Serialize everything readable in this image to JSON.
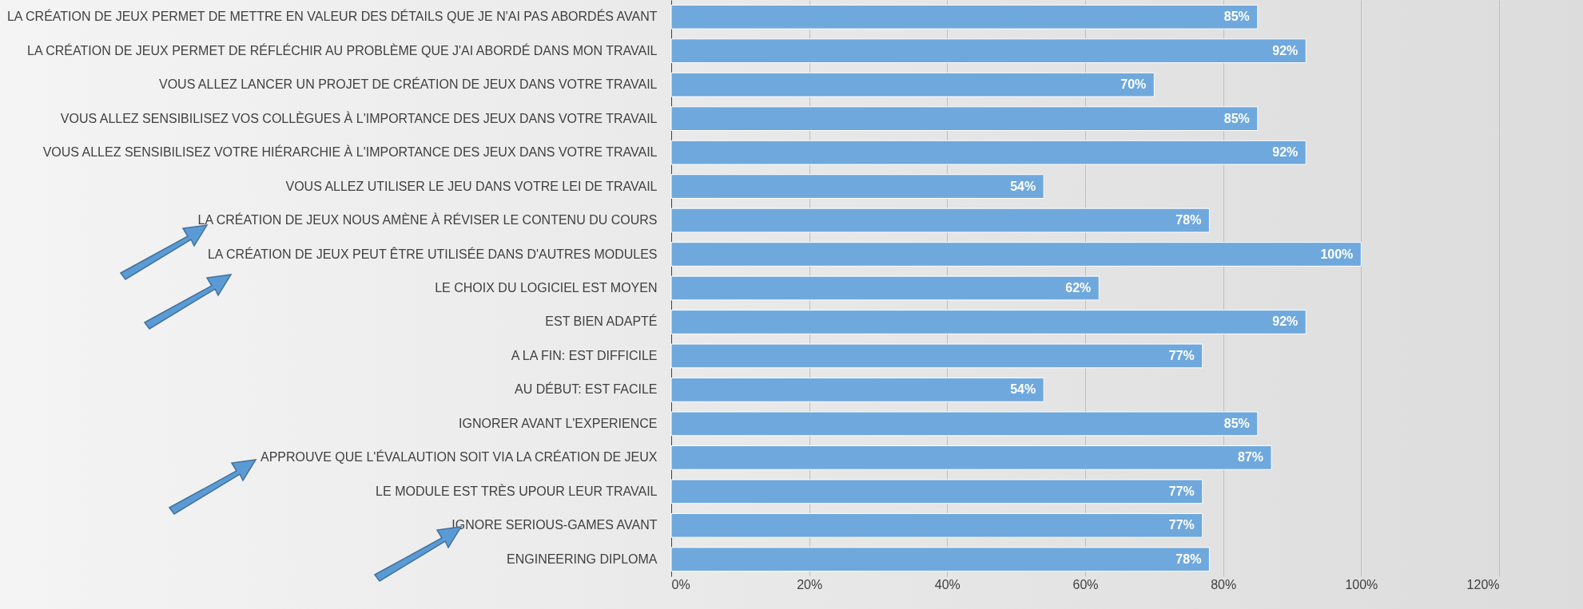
{
  "chart_data": {
    "type": "bar",
    "orientation": "horizontal",
    "categories": [
      "LA CRÉATION DE JEUX PERMET DE METTRE EN VALEUR DES DÉTAILS QUE JE N'AI PAS ABORDÉS AVANT",
      "LA CRÉATION DE JEUX PERMET DE RÉFLÉCHIR AU PROBLÈME QUE J'AI ABORDÉ DANS MON TRAVAIL",
      "VOUS ALLEZ LANCER UN PROJET DE CRÉATION DE JEUX  DANS VOTRE TRAVAIL",
      "VOUS ALLEZ SENSIBILISEZ VOS COLLÈGUES À L'IMPORTANCE DES JEUX DANS VOTRE TRAVAIL",
      "VOUS ALLEZ SENSIBILISEZ VOTRE HIÉRARCHIE À L'IMPORTANCE DES JEUX DANS VOTRE TRAVAIL",
      "VOUS ALLEZ UTILISER LE JEU DANS VOTRE LEI DE TRAVAIL",
      "LA CRÉATION DE JEUX NOUS AMÈNE À RÉVISER LE CONTENU DU COURS",
      "LA CRÉATION DE JEUX PEUT ÊTRE UTILISÉE DANS D'AUTRES MODULES",
      "LE CHOIX DU LOGICIEL EST MOYEN",
      "EST BIEN ADAPTÉ",
      "A LA FIN: EST DIFFICILE",
      "AU DÉBUT: EST FACILE",
      "IGNORER AVANT L'EXPERIENCE",
      "APPROUVE QUE L'ÉVALAUTION SOIT VIA LA CRÉATION DE JEUX",
      "LE MODULE EST TRÈS UPOUR LEUR TRAVAIL",
      "IGNORE SERIOUS-GAMES AVANT",
      "ENGINEERING DIPLOMA"
    ],
    "values": [
      85,
      92,
      70,
      85,
      92,
      54,
      78,
      100,
      62,
      92,
      77,
      54,
      85,
      87,
      77,
      77,
      78
    ],
    "value_labels": [
      "85%",
      "92%",
      "70%",
      "85%",
      "92%",
      "54%",
      "78%",
      "100%",
      "62%",
      "92%",
      "77%",
      "54%",
      "85%",
      "87%",
      "77%",
      "77%",
      "78%"
    ],
    "color": "#6fa8dc",
    "xlim": [
      0,
      120
    ],
    "xticks": [
      {
        "value": 0,
        "label": "0%"
      },
      {
        "value": 20,
        "label": "20%"
      },
      {
        "value": 40,
        "label": "40%"
      },
      {
        "value": 60,
        "label": "60%"
      },
      {
        "value": 80,
        "label": "80%"
      },
      {
        "value": 100,
        "label": "100%"
      },
      {
        "value": 120,
        "label": "120%"
      }
    ],
    "grid": "x"
  }
}
